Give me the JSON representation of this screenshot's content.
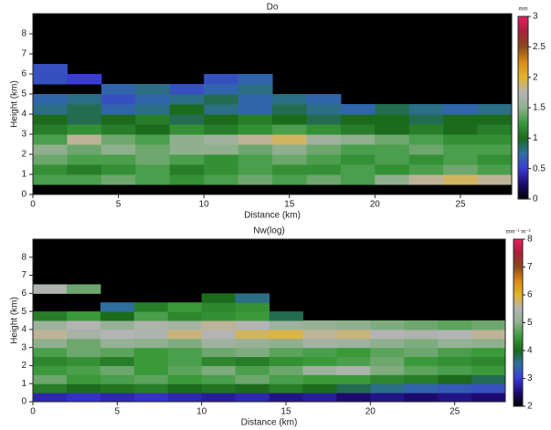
{
  "chart_data": [
    {
      "type": "heatmap",
      "title": "Do",
      "xlabel": "Distance (km)",
      "ylabel": "Height (km)",
      "colorbar_label": "mm",
      "xlim": [
        0,
        28
      ],
      "xticks": [
        0,
        5,
        10,
        15,
        20,
        25
      ],
      "ylim": [
        0,
        9
      ],
      "yticks": [
        0,
        1,
        2,
        3,
        4,
        5,
        6,
        7,
        8
      ],
      "zlim": [
        0,
        3
      ],
      "zticks": [
        0,
        0.5,
        1,
        1.5,
        2,
        2.5,
        3
      ],
      "colormap": [
        "#000000",
        "#1c0a70",
        "#3b3bd6",
        "#2f6fa0",
        "#1c6a1c",
        "#3a9a3a",
        "#8fb08f",
        "#b4b4b4",
        "#e3b42a",
        "#d98a18",
        "#8a4a1c",
        "#a8203c",
        "#e8205e"
      ],
      "x": [
        1,
        3,
        5,
        7,
        9,
        11,
        13,
        15,
        17,
        19,
        21,
        23,
        25,
        27
      ],
      "y": [
        0.25,
        0.75,
        1.25,
        1.75,
        2.25,
        2.75,
        3.25,
        3.75,
        4.25,
        4.75,
        5.25,
        5.75,
        6.25
      ],
      "z": [
        [
          null,
          null,
          null,
          null,
          null,
          null,
          null,
          null,
          null,
          null,
          null,
          null,
          null,
          null
        ],
        [
          1.3,
          1.3,
          1.4,
          1.3,
          1.2,
          1.3,
          1.4,
          1.3,
          1.4,
          1.3,
          1.5,
          1.8,
          1.9,
          1.8
        ],
        [
          1.2,
          1.1,
          1.2,
          1.3,
          1.1,
          1.2,
          1.3,
          1.2,
          1.2,
          1.3,
          1.2,
          1.3,
          1.4,
          1.3
        ],
        [
          1.4,
          1.3,
          1.3,
          1.4,
          1.3,
          1.2,
          1.3,
          1.4,
          1.3,
          1.2,
          1.3,
          1.2,
          1.3,
          1.2
        ],
        [
          1.5,
          1.4,
          1.5,
          1.4,
          1.5,
          1.5,
          1.4,
          1.5,
          1.4,
          1.3,
          1.3,
          1.4,
          1.3,
          1.3
        ],
        [
          1.3,
          1.8,
          1.4,
          1.3,
          1.5,
          1.6,
          1.8,
          1.9,
          1.6,
          1.5,
          1.4,
          1.3,
          1.2,
          1.2
        ],
        [
          1.1,
          1.2,
          1.1,
          1.0,
          1.2,
          1.1,
          1.2,
          1.3,
          1.2,
          1.1,
          1.0,
          1.1,
          1.0,
          1.1
        ],
        [
          1.0,
          0.9,
          1.0,
          1.1,
          0.9,
          1.0,
          1.1,
          1.0,
          0.9,
          1.0,
          1.0,
          0.9,
          1.0,
          1.0
        ],
        [
          0.8,
          0.9,
          0.7,
          0.8,
          1.0,
          0.8,
          0.7,
          0.9,
          0.8,
          0.7,
          0.9,
          0.8,
          0.7,
          0.8
        ],
        [
          0.7,
          0.8,
          0.6,
          0.7,
          0.8,
          0.9,
          0.7,
          0.8,
          0.7,
          null,
          null,
          null,
          null,
          null
        ],
        [
          null,
          null,
          0.7,
          0.8,
          0.6,
          0.7,
          0.8,
          null,
          null,
          null,
          null,
          null,
          null,
          null
        ],
        [
          0.6,
          0.5,
          null,
          null,
          null,
          0.6,
          0.7,
          null,
          null,
          null,
          null,
          null,
          null,
          null
        ],
        [
          0.6,
          null,
          null,
          null,
          null,
          null,
          null,
          null,
          null,
          null,
          null,
          null,
          null,
          null
        ]
      ]
    },
    {
      "type": "heatmap",
      "title": "Nw(log)",
      "xlabel": "Distance (km)",
      "ylabel": "Height (km)",
      "colorbar_label": "mm⁻¹ m⁻³",
      "xlim": [
        0,
        28
      ],
      "xticks": [
        0,
        5,
        10,
        15,
        20,
        25
      ],
      "ylim": [
        0,
        9
      ],
      "yticks": [
        0,
        1,
        2,
        3,
        4,
        5,
        6,
        7,
        8
      ],
      "zlim": [
        2,
        8
      ],
      "zticks": [
        2,
        3,
        4,
        5,
        6,
        7,
        8
      ],
      "colormap": [
        "#000000",
        "#1c0a70",
        "#3b3bd6",
        "#2f6fa0",
        "#1c6a1c",
        "#3a9a3a",
        "#8fb08f",
        "#b4b4b4",
        "#e3b42a",
        "#d98a18",
        "#8a4a1c",
        "#a8203c",
        "#e8205e"
      ],
      "x": [
        1,
        3,
        5,
        7,
        9,
        11,
        13,
        15,
        17,
        19,
        21,
        23,
        25,
        27
      ],
      "y": [
        0.25,
        0.75,
        1.25,
        1.75,
        2.25,
        2.75,
        3.25,
        3.75,
        4.25,
        4.75,
        5.25,
        5.75,
        6.25
      ],
      "z": [
        [
          2.8,
          2.9,
          2.8,
          2.9,
          2.8,
          2.7,
          2.8,
          2.6,
          2.7,
          2.5,
          2.6,
          2.5,
          2.6,
          2.5
        ],
        [
          4.2,
          4.0,
          4.1,
          4.2,
          4.0,
          4.1,
          4.0,
          4.2,
          4.0,
          3.8,
          3.6,
          3.4,
          3.3,
          3.2
        ],
        [
          4.8,
          4.5,
          4.6,
          4.7,
          4.5,
          4.6,
          4.8,
          4.6,
          4.5,
          4.5,
          4.3,
          4.2,
          4.0,
          3.8
        ],
        [
          4.5,
          4.6,
          4.8,
          4.5,
          4.7,
          4.9,
          4.6,
          4.8,
          5.2,
          5.4,
          4.9,
          4.7,
          4.6,
          4.5
        ],
        [
          4.3,
          4.4,
          4.2,
          4.5,
          4.6,
          4.3,
          4.2,
          4.4,
          4.5,
          4.6,
          4.8,
          4.5,
          4.4,
          4.3
        ],
        [
          4.6,
          4.8,
          4.7,
          4.5,
          4.6,
          4.8,
          4.9,
          4.7,
          4.6,
          4.5,
          4.7,
          4.8,
          4.6,
          4.5
        ],
        [
          5.0,
          4.8,
          5.1,
          5.0,
          4.9,
          5.2,
          5.1,
          5.0,
          5.3,
          5.2,
          5.0,
          4.9,
          5.1,
          5.0
        ],
        [
          5.6,
          5.3,
          5.5,
          5.4,
          5.7,
          5.5,
          5.8,
          5.9,
          5.6,
          5.7,
          5.5,
          5.4,
          5.5,
          5.6
        ],
        [
          5.2,
          5.5,
          5.1,
          5.4,
          5.3,
          5.6,
          5.5,
          5.2,
          5.1,
          5.0,
          4.9,
          4.8,
          4.7,
          4.8
        ],
        [
          4.2,
          4.5,
          4.0,
          4.6,
          4.3,
          4.4,
          4.5,
          3.8,
          null,
          null,
          null,
          null,
          null,
          null
        ],
        [
          null,
          null,
          3.5,
          4.2,
          4.5,
          4.3,
          4.4,
          null,
          null,
          null,
          null,
          null,
          null,
          null
        ],
        [
          null,
          null,
          null,
          null,
          null,
          4.0,
          3.6,
          null,
          null,
          null,
          null,
          null,
          null,
          null
        ],
        [
          5.4,
          4.8,
          null,
          null,
          null,
          null,
          null,
          null,
          null,
          null,
          null,
          null,
          null,
          null
        ]
      ]
    }
  ]
}
